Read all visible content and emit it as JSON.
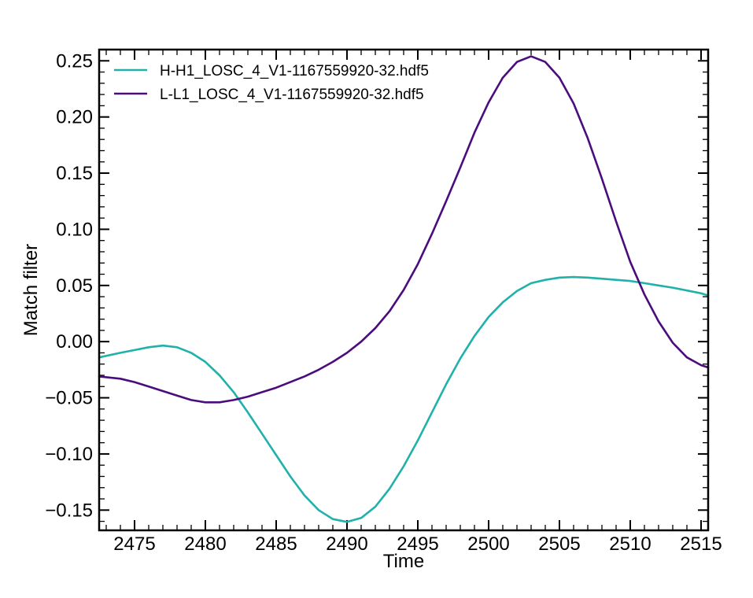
{
  "chart_data": {
    "type": "line",
    "xlabel": "Time",
    "ylabel": "Match filter",
    "xlim": [
      2472.5,
      2515.5
    ],
    "ylim": [
      -0.168,
      0.26
    ],
    "xticks": [
      2475,
      2480,
      2485,
      2490,
      2495,
      2500,
      2505,
      2510,
      2515
    ],
    "yticks": [
      -0.15,
      -0.1,
      -0.05,
      0.0,
      0.05,
      0.1,
      0.15,
      0.2,
      0.25
    ],
    "ytick_labels": [
      "−0.15",
      "−0.10",
      "−0.05",
      "0.00",
      "0.05",
      "0.10",
      "0.15",
      "0.20",
      "0.25"
    ],
    "legend_position": "top-left",
    "grid": false,
    "series": [
      {
        "name": "H-H1_LOSC_4_V1-1167559920-32.hdf5",
        "color": "#20b2aa",
        "x": [
          2472.5,
          2474,
          2475,
          2476,
          2477,
          2478,
          2479,
          2480,
          2481,
          2482,
          2483,
          2484,
          2485,
          2486,
          2487,
          2488,
          2489,
          2490,
          2491,
          2492,
          2493,
          2494,
          2495,
          2496,
          2497,
          2498,
          2499,
          2500,
          2501,
          2502,
          2503,
          2504,
          2505,
          2506,
          2507,
          2508,
          2509,
          2510,
          2511,
          2512,
          2513,
          2514,
          2515,
          2515.5
        ],
        "y": [
          -0.014,
          -0.01,
          -0.0075,
          -0.005,
          -0.0035,
          -0.005,
          -0.01,
          -0.018,
          -0.03,
          -0.045,
          -0.063,
          -0.082,
          -0.101,
          -0.12,
          -0.137,
          -0.15,
          -0.158,
          -0.1605,
          -0.157,
          -0.147,
          -0.131,
          -0.111,
          -0.088,
          -0.063,
          -0.038,
          -0.015,
          0.005,
          0.022,
          0.035,
          0.045,
          0.052,
          0.055,
          0.057,
          0.0575,
          0.057,
          0.056,
          0.055,
          0.054,
          0.052,
          0.05,
          0.048,
          0.0455,
          0.043,
          0.041
        ]
      },
      {
        "name": "L-L1_LOSC_4_V1-1167559920-32.hdf5",
        "color": "#4b0c7c",
        "x": [
          2472.5,
          2474,
          2475,
          2476,
          2477,
          2478,
          2479,
          2480,
          2481,
          2482,
          2483,
          2484,
          2485,
          2486,
          2487,
          2488,
          2489,
          2490,
          2491,
          2492,
          2493,
          2494,
          2495,
          2496,
          2497,
          2498,
          2499,
          2500,
          2501,
          2502,
          2503,
          2504,
          2505,
          2506,
          2507,
          2508,
          2509,
          2510,
          2511,
          2512,
          2513,
          2514,
          2515,
          2515.5
        ],
        "y": [
          -0.031,
          -0.033,
          -0.036,
          -0.04,
          -0.044,
          -0.048,
          -0.052,
          -0.054,
          -0.054,
          -0.052,
          -0.049,
          -0.045,
          -0.041,
          -0.036,
          -0.031,
          -0.025,
          -0.018,
          -0.01,
          0.0,
          0.012,
          0.027,
          0.046,
          0.069,
          0.096,
          0.125,
          0.155,
          0.186,
          0.213,
          0.235,
          0.249,
          0.254,
          0.249,
          0.235,
          0.212,
          0.181,
          0.145,
          0.107,
          0.071,
          0.042,
          0.018,
          -0.001,
          -0.014,
          -0.021,
          -0.023
        ]
      }
    ]
  }
}
